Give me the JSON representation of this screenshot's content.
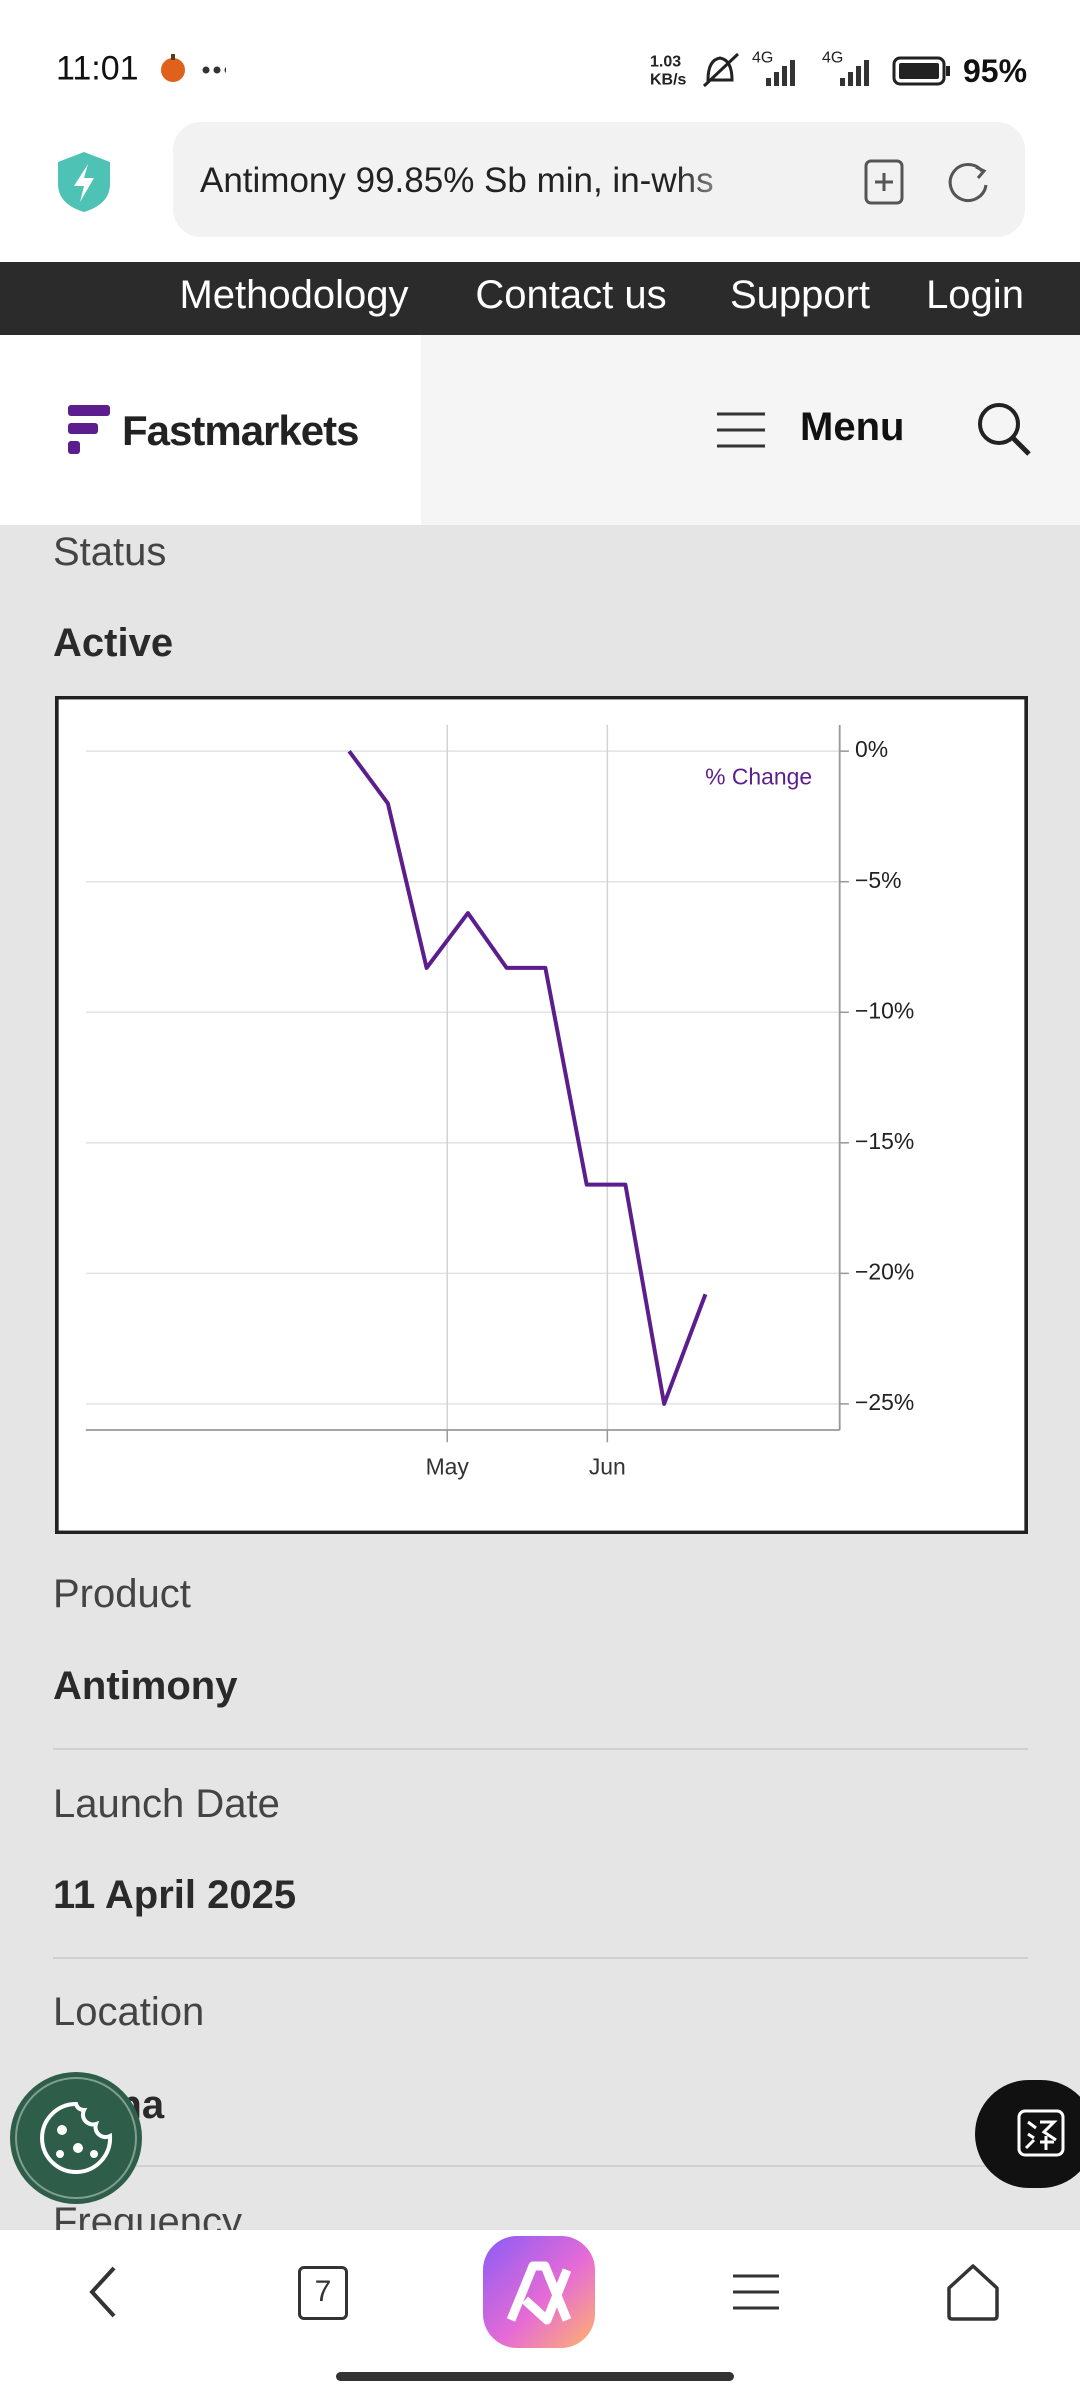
{
  "status_bar": {
    "time": "11:01",
    "speed": "1.03",
    "speed_unit": "KB/s",
    "network_1": "4G",
    "network_2": "4G",
    "battery": "95%"
  },
  "browser": {
    "url": "Antimony 99.85% Sb min, in-whs",
    "tab_count": "7"
  },
  "nav": {
    "links": [
      "Methodology",
      "Contact us",
      "Support",
      "Login"
    ]
  },
  "header": {
    "logo": "Fastmarkets",
    "menu": "Menu"
  },
  "fields": [
    {
      "label": "Status",
      "value": "Active"
    },
    {
      "label": "Product",
      "value": "Antimony"
    },
    {
      "label": "Launch Date",
      "value": "11 April 2025"
    },
    {
      "label": "Location",
      "value": "China"
    },
    {
      "label": "Frequency"
    }
  ],
  "chart_data": {
    "type": "line",
    "x": [
      11,
      18.5,
      26,
      34,
      41.5,
      49,
      57,
      64.5,
      72,
      80
    ],
    "series": [
      {
        "name": "% Change",
        "color": "#5c1e8c",
        "values": [
          0,
          -2.0,
          -8.3,
          -6.2,
          -8.3,
          -8.3,
          -16.6,
          -16.6,
          -25.0,
          -20.8
        ]
      }
    ],
    "xlim": [
      -40,
      106
    ],
    "xticks": [
      {
        "value": 30,
        "label": "May"
      },
      {
        "value": 61,
        "label": "Jun"
      }
    ],
    "ylim": [
      -26,
      1
    ],
    "yticks": [
      {
        "value": 0,
        "label": "0%"
      },
      {
        "value": -5,
        "label": "−5%"
      },
      {
        "value": -10,
        "label": "−10%"
      },
      {
        "value": -15,
        "label": "−15%"
      },
      {
        "value": -20,
        "label": "−20%"
      },
      {
        "value": -25,
        "label": "−25%"
      }
    ],
    "grid": true
  }
}
